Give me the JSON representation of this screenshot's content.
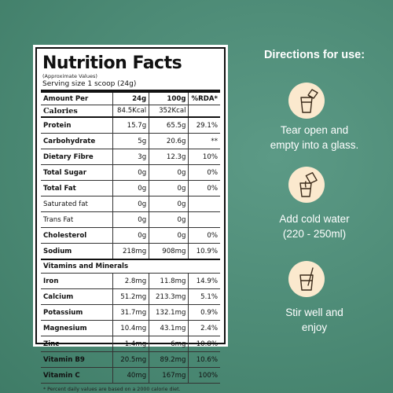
{
  "nutrition": {
    "title": "Nutrition Facts",
    "subtitle": "(Approximate Values)",
    "serving": "Serving size 1 scoop (24g)",
    "headers": [
      "Amount Per",
      "24g",
      "100g",
      "%RDA*"
    ],
    "calories": [
      "Calories",
      "84.5Kcal",
      "352Kcal",
      ""
    ],
    "rows": [
      [
        "Protein",
        "15.7g",
        "65.5g",
        "29.1%"
      ],
      [
        "Carbohydrate",
        "5g",
        "20.6g",
        "**"
      ],
      [
        "Dietary Fibre",
        "3g",
        "12.3g",
        "10%"
      ],
      [
        "Total Sugar",
        "0g",
        "0g",
        "0%"
      ],
      [
        "Total Fat",
        "0g",
        "0g",
        "0%"
      ],
      [
        "Saturated fat",
        "0g",
        "0g",
        ""
      ],
      [
        "Trans Fat",
        "0g",
        "0g",
        ""
      ],
      [
        "Cholesterol",
        "0g",
        "0g",
        "0%"
      ],
      [
        "Sodium",
        "218mg",
        "908mg",
        "10.9%"
      ]
    ],
    "vitamins_title": "Vitamins and Minerals",
    "vitamins": [
      [
        "Iron",
        "2.8mg",
        "11.8mg",
        "14.9%"
      ],
      [
        "Calcium",
        "51.2mg",
        "213.3mg",
        "5.1%"
      ],
      [
        "Potassium",
        "31.7mg",
        "132.1mg",
        "0.9%"
      ],
      [
        "Magnesium",
        "10.4mg",
        "43.1mg",
        "2.4%"
      ],
      [
        "Zinc",
        "1.4mg",
        "6mg",
        "10.8%"
      ],
      [
        "Vitamin B9",
        "20.5mg",
        "89.2mg",
        "10.6%"
      ],
      [
        "Vitamin C",
        "40mg",
        "167mg",
        "100%"
      ]
    ],
    "footnote": "* Percent daily values are based on a 2000 calorie diet."
  },
  "directions": {
    "title": "Directions for use:",
    "steps": [
      {
        "line1": "Tear open and",
        "line2": "empty into a glass.",
        "icon": "sachet-glass-icon"
      },
      {
        "line1": "Add cold water",
        "line2": "(220 - 250ml)",
        "icon": "pour-water-glass-icon"
      },
      {
        "line1": "Stir well and",
        "line2": "enjoy",
        "icon": "stir-glass-icon"
      }
    ]
  },
  "colors": {
    "background": "#4c8a75",
    "icon_circle": "#fbe9ce",
    "icon_stroke": "#3b2a1a"
  }
}
